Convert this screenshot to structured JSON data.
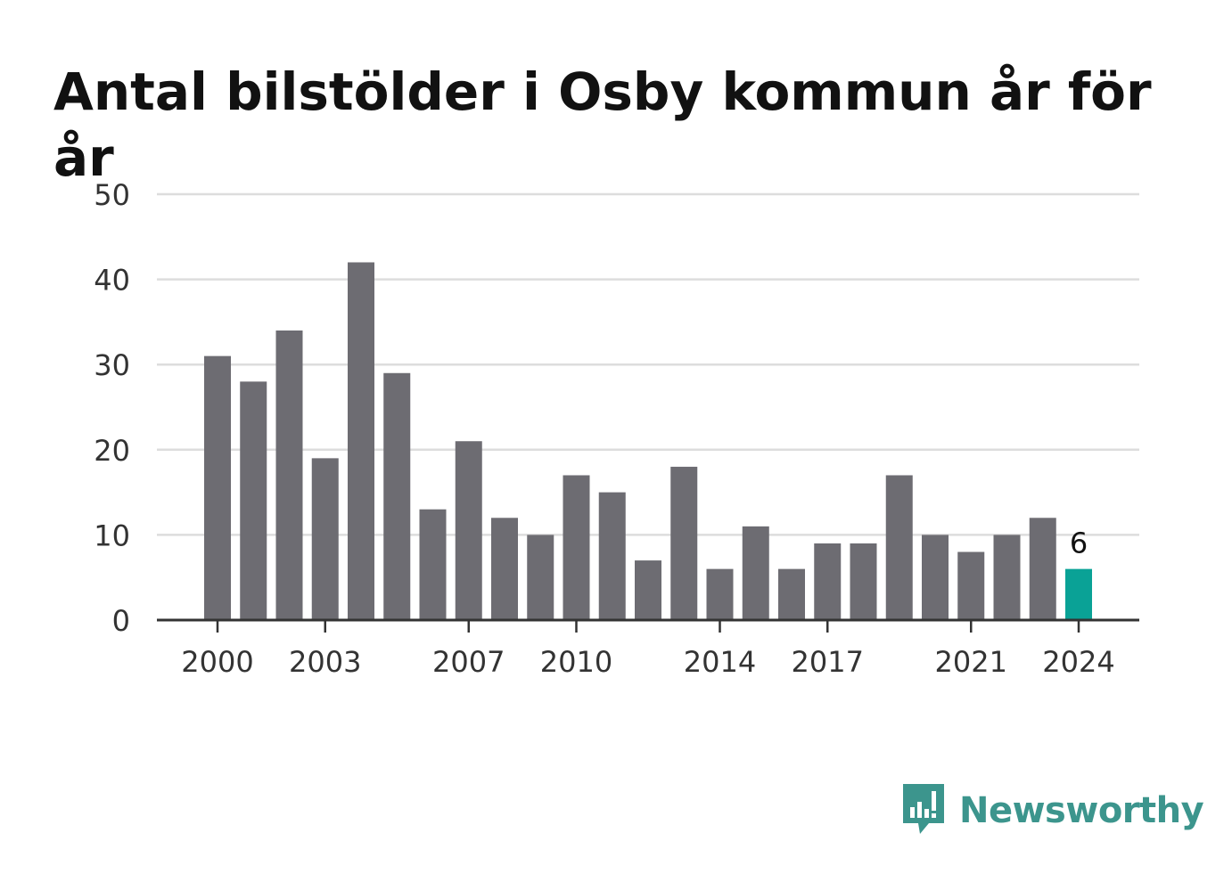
{
  "colors": {
    "bar": "#6d6c72",
    "highlight": "#0aa296",
    "brand": "#3c958d",
    "grid": "#dddddd",
    "axis": "#333333"
  },
  "brand": {
    "name": "Newsworthy",
    "icon": "bar-chart-speech-bubble-icon"
  },
  "chart_data": {
    "type": "bar",
    "title": "Antal bilstölder i Osby kommun år för år",
    "x": [
      2000,
      2001,
      2002,
      2003,
      2004,
      2005,
      2006,
      2007,
      2008,
      2009,
      2010,
      2011,
      2012,
      2013,
      2014,
      2015,
      2016,
      2017,
      2018,
      2019,
      2020,
      2021,
      2022,
      2023,
      2024
    ],
    "values": [
      31,
      28,
      34,
      19,
      42,
      29,
      13,
      21,
      12,
      10,
      17,
      15,
      7,
      18,
      6,
      11,
      6,
      9,
      9,
      17,
      10,
      8,
      10,
      12,
      6
    ],
    "highlight_index": 24,
    "data_labels": [
      {
        "index": 24,
        "text": "6"
      }
    ],
    "x_tick_labels": [
      "2000",
      "2003",
      "2007",
      "2010",
      "2014",
      "2017",
      "2021",
      "2024"
    ],
    "y_ticks": [
      0,
      10,
      20,
      30,
      40,
      50
    ],
    "ylim": [
      0,
      50
    ],
    "xlabel": "",
    "ylabel": "",
    "grid": true
  }
}
